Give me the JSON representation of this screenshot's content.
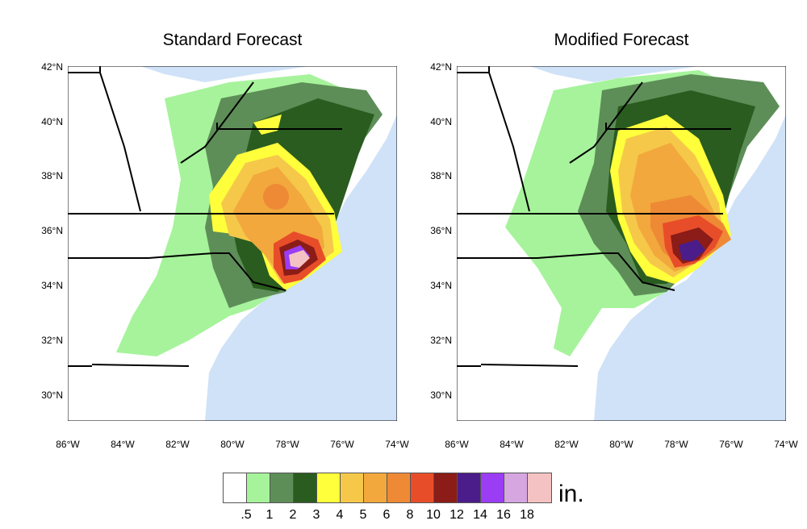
{
  "panels": [
    {
      "title": "Standard Forecast"
    },
    {
      "title": "Modified Forecast"
    }
  ],
  "lat_labels": [
    "42°N",
    "40°N",
    "38°N",
    "36°N",
    "34°N",
    "32°N",
    "30°N"
  ],
  "lon_labels": [
    "86°W",
    "84°W",
    "82°W",
    "80°W",
    "78°W",
    "76°W",
    "74°W"
  ],
  "colorbar": {
    "labels": [
      ".5",
      "1",
      "2",
      "3",
      "4",
      "5",
      "6",
      "8",
      "10",
      "12",
      "14",
      "16",
      "18"
    ],
    "colors": [
      "#ffffff",
      "#a6f39b",
      "#5e8e58",
      "#2a5c1f",
      "#ffff3b",
      "#f5c84a",
      "#f2a83c",
      "#ee8a35",
      "#e84d2a",
      "#8b1c17",
      "#4b1d8a",
      "#9a3df5",
      "#d5a6e0",
      "#f4c2c2"
    ],
    "units": "in."
  },
  "map": {
    "ocean_color": "#cfe2f7",
    "land_color": "#ffffff",
    "extent": {
      "lon": [
        -86,
        -74
      ],
      "lat": [
        29,
        42
      ]
    }
  }
}
